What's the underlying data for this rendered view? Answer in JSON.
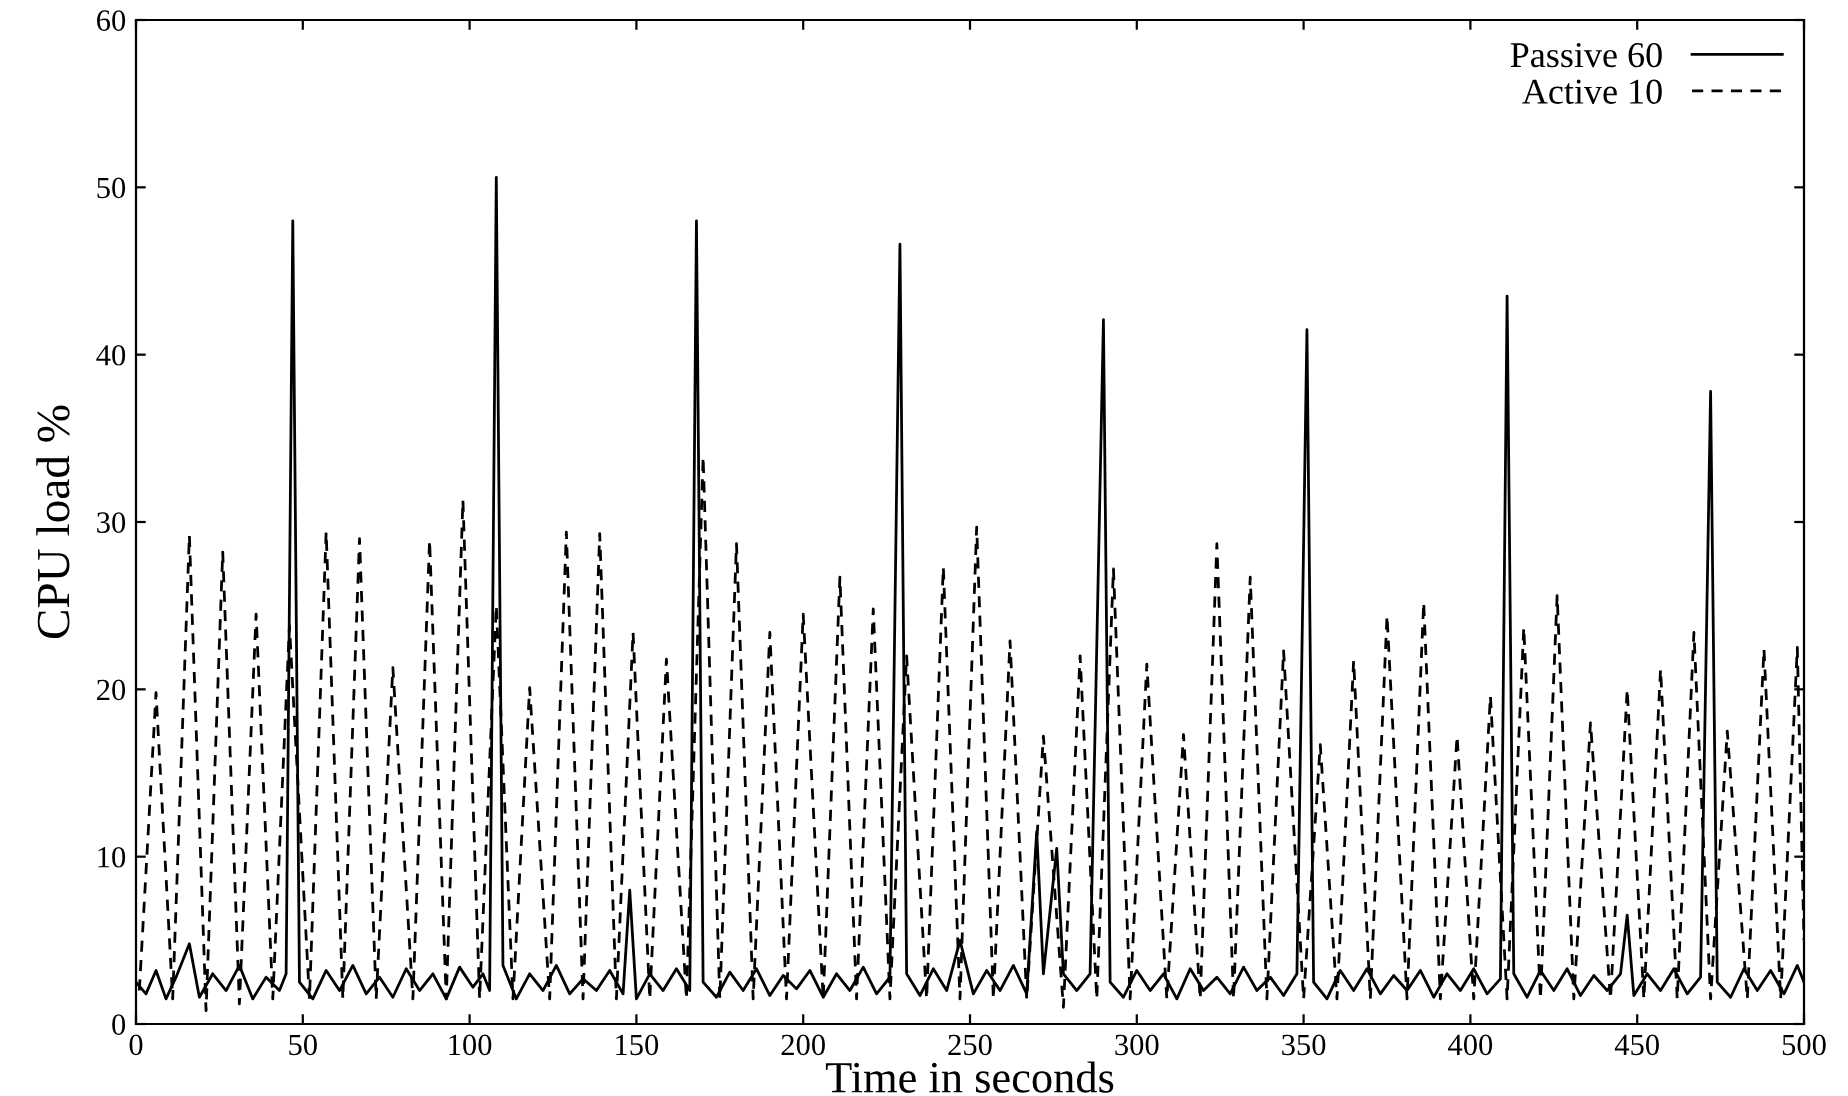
{
  "chart_data": {
    "type": "line",
    "xlabel": "Time in seconds",
    "ylabel": "CPU load %",
    "xlim": [
      0,
      500
    ],
    "ylim": [
      0,
      60
    ],
    "xticks": [
      0,
      50,
      100,
      150,
      200,
      250,
      300,
      350,
      400,
      450,
      500
    ],
    "yticks": [
      0,
      10,
      20,
      30,
      40,
      50,
      60
    ],
    "legend": "top right",
    "grid": false,
    "series": [
      {
        "name": "Passive 60",
        "color": "#000000",
        "line_style": "solid",
        "x": [
          0,
          3,
          6,
          9,
          12,
          16,
          19,
          23,
          27,
          31,
          35,
          39,
          43,
          45,
          47,
          49,
          53,
          57,
          61,
          65,
          69,
          73,
          77,
          81,
          85,
          89,
          93,
          97,
          101,
          104,
          106,
          108,
          110,
          114,
          118,
          122,
          126,
          130,
          134,
          138,
          142,
          146,
          148,
          150,
          154,
          158,
          162,
          166,
          168,
          170,
          174,
          178,
          182,
          186,
          190,
          194,
          198,
          202,
          206,
          210,
          214,
          218,
          222,
          226,
          229,
          231,
          235,
          239,
          243,
          247,
          251,
          255,
          259,
          263,
          267,
          270,
          272,
          276,
          278,
          282,
          286,
          290,
          292,
          296,
          300,
          304,
          308,
          312,
          316,
          320,
          324,
          328,
          332,
          336,
          340,
          344,
          348,
          351,
          353,
          357,
          361,
          365,
          369,
          373,
          377,
          381,
          385,
          389,
          393,
          397,
          401,
          405,
          409,
          411,
          413,
          417,
          421,
          425,
          429,
          433,
          437,
          441,
          445,
          447,
          449,
          453,
          457,
          461,
          465,
          469,
          472,
          474,
          478,
          482,
          486,
          490,
          494,
          498,
          500
        ],
        "values": [
          2.5,
          1.8,
          3.2,
          1.5,
          2.8,
          4.8,
          1.6,
          3.0,
          2.0,
          3.5,
          1.5,
          2.8,
          2.0,
          3.0,
          48,
          2.5,
          1.5,
          3.2,
          2.0,
          3.5,
          1.8,
          2.8,
          1.6,
          3.3,
          2.0,
          3.0,
          1.5,
          3.4,
          2.2,
          3.0,
          2.0,
          50.6,
          3.5,
          1.5,
          3.0,
          2.0,
          3.5,
          1.8,
          2.7,
          2.0,
          3.2,
          1.8,
          8.0,
          1.5,
          3.0,
          2.0,
          3.3,
          2.0,
          48,
          2.5,
          1.6,
          3.1,
          2.0,
          3.3,
          1.7,
          2.9,
          2.1,
          3.2,
          1.6,
          3.0,
          2.0,
          3.4,
          1.8,
          2.8,
          46.6,
          3.0,
          1.7,
          3.3,
          2.0,
          5.0,
          1.8,
          3.2,
          2.0,
          3.5,
          1.8,
          11.5,
          3.0,
          10.5,
          3.0,
          2.0,
          3.0,
          42.1,
          2.5,
          1.6,
          3.2,
          2.0,
          3.0,
          1.5,
          3.3,
          2.0,
          2.8,
          1.8,
          3.4,
          2.0,
          2.8,
          1.7,
          3.0,
          41.5,
          2.5,
          1.5,
          3.2,
          2.0,
          3.3,
          1.8,
          2.9,
          2.0,
          3.2,
          1.6,
          3.0,
          2.0,
          3.3,
          1.8,
          2.7,
          43.5,
          3.0,
          1.6,
          3.2,
          2.0,
          3.3,
          1.7,
          2.9,
          2.0,
          3.0,
          6.5,
          1.7,
          3.0,
          2.0,
          3.3,
          1.8,
          2.8,
          37.8,
          2.5,
          1.6,
          3.3,
          2.0,
          3.2,
          1.8,
          3.5,
          2.5
        ]
      },
      {
        "name": "Active 10",
        "color": "#000000",
        "line_style": "dashed",
        "x": [
          1,
          6,
          11,
          16,
          21,
          26,
          31,
          36,
          41,
          46,
          52,
          57,
          62,
          67,
          72,
          77,
          83,
          88,
          93,
          98,
          103,
          108,
          113,
          118,
          124,
          129,
          134,
          139,
          144,
          149,
          154,
          159,
          165,
          170,
          175,
          180,
          185,
          190,
          195,
          200,
          206,
          211,
          216,
          221,
          226,
          231,
          237,
          242,
          247,
          252,
          257,
          262,
          267,
          272,
          278,
          283,
          288,
          293,
          298,
          303,
          309,
          314,
          319,
          324,
          329,
          334,
          339,
          344,
          350,
          355,
          360,
          365,
          370,
          375,
          381,
          386,
          391,
          396,
          401,
          406,
          411,
          416,
          421,
          426,
          431,
          436,
          442,
          447,
          452,
          457,
          462,
          467,
          472,
          477,
          483,
          488,
          493,
          498,
          500
        ],
        "values": [
          2.0,
          19.8,
          1.5,
          29.2,
          0.8,
          28.2,
          1.2,
          24.5,
          1.5,
          23.8,
          1.5,
          29.4,
          1.5,
          29.0,
          1.5,
          21.3,
          1.5,
          28.9,
          1.5,
          31.3,
          1.5,
          25.0,
          1.5,
          20.1,
          1.5,
          29.4,
          1.5,
          29.3,
          1.5,
          23.4,
          1.5,
          21.8,
          1.5,
          33.9,
          1.5,
          28.7,
          1.5,
          23.4,
          1.5,
          24.5,
          1.5,
          26.7,
          1.5,
          24.8,
          1.5,
          22.0,
          1.5,
          27.3,
          1.5,
          29.7,
          1.5,
          22.9,
          1.5,
          17.2,
          1.0,
          22.0,
          1.5,
          27.2,
          1.5,
          21.5,
          1.5,
          17.3,
          1.5,
          28.7,
          1.5,
          26.7,
          1.5,
          22.3,
          1.5,
          16.7,
          1.5,
          21.7,
          1.5,
          24.4,
          1.5,
          25.2,
          1.5,
          17.2,
          1.5,
          19.6,
          1.5,
          23.7,
          1.5,
          25.6,
          1.5,
          18.0,
          1.5,
          20.0,
          1.5,
          21.2,
          1.5,
          23.4,
          1.5,
          17.5,
          1.5,
          22.4,
          1.5,
          22.5,
          5.0
        ]
      }
    ]
  }
}
